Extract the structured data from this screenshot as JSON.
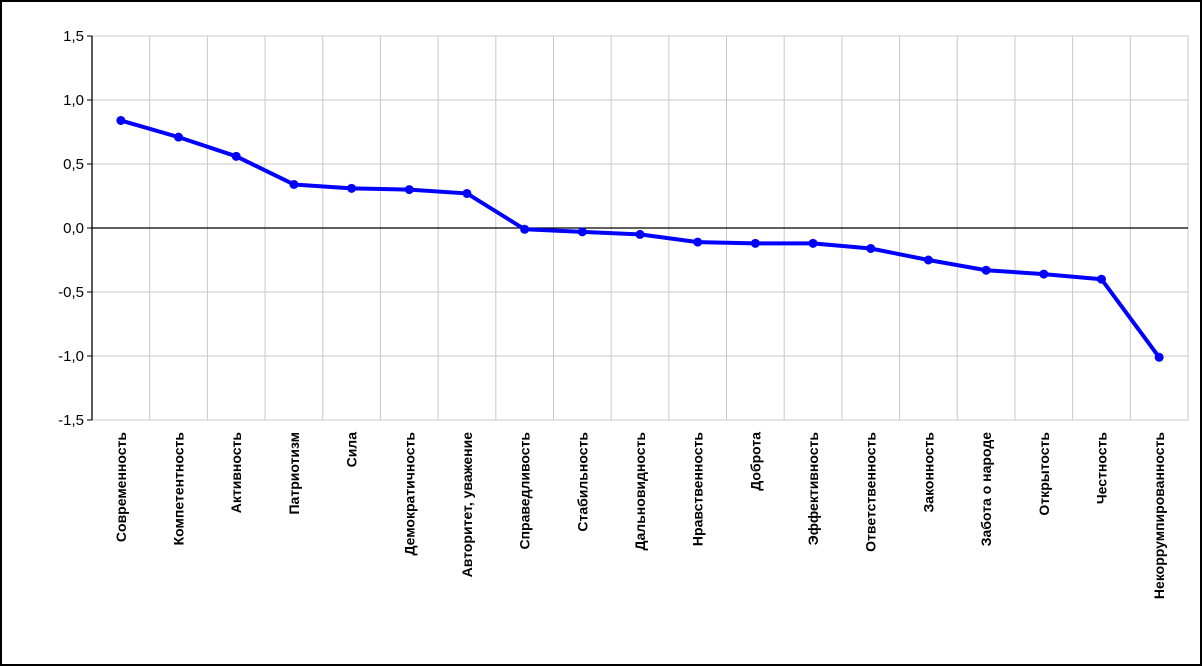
{
  "chart_data": {
    "type": "line",
    "categories": [
      "Современность",
      "Компетентность",
      "Активность",
      "Патриотизм",
      "Сила",
      "Демократичность",
      "Авторитет, уважение",
      "Справедливость",
      "Стабильность",
      "Дальновидность",
      "Нравственность",
      "Доброта",
      "Эффективность",
      "Ответственность",
      "Законность",
      "Забота о народе",
      "Открытость",
      "Честность",
      "Некоррумпированность"
    ],
    "series": [
      {
        "values": [
          0.84,
          0.71,
          0.56,
          0.34,
          0.31,
          0.3,
          0.27,
          -0.01,
          -0.03,
          -0.05,
          -0.11,
          -0.12,
          -0.12,
          -0.16,
          -0.25,
          -0.33,
          -0.36,
          -0.4,
          -1.01
        ],
        "color": "#0000ff"
      }
    ],
    "y_ticks": [
      "1,5",
      "1,0",
      "0,5",
      "0,0",
      "-0,5",
      "-1,0",
      "-1,5"
    ],
    "ylim": [
      -1.5,
      1.5
    ],
    "grid": true,
    "title": "",
    "xlabel": "",
    "ylabel": ""
  }
}
